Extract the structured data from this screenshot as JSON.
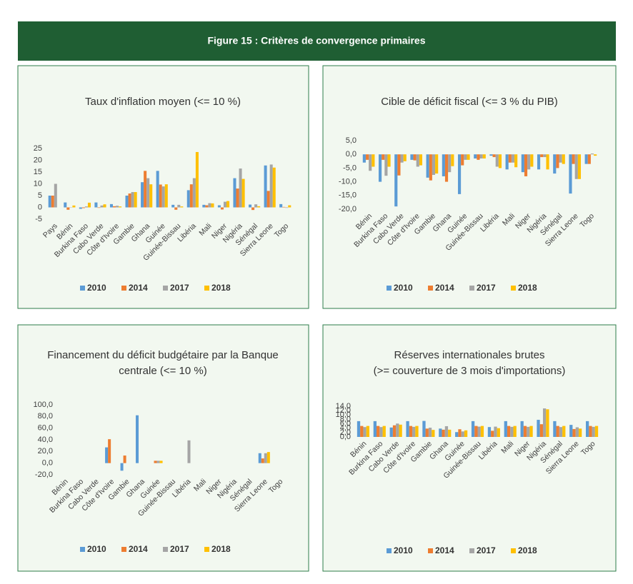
{
  "figure_title": "Figure 15 : Critères de convergence primaires",
  "chart_data": [
    {
      "type": "bar",
      "title": [
        "Taux d'inflation moyen (<= 10 %)"
      ],
      "categories": [
        "Pays",
        "Bénin",
        "Burkina Faso",
        "Cabo Verde",
        "Côte d'Ivoire",
        "Gambie",
        "Ghana",
        "Guinée",
        "Guinée-Bissau",
        "Libéria",
        "Mali",
        "Niger",
        "Nigéria",
        "Sénégal",
        "Sierra Leone",
        "Togo"
      ],
      "series": [
        {
          "name": "2010",
          "color": "#5b9bd5",
          "values": [
            5,
            2.1,
            -0.6,
            2.1,
            1.4,
            5,
            10.7,
            15.5,
            1.1,
            7.3,
            1.1,
            0.9,
            12.4,
            1.2,
            17.8,
            1.4
          ]
        },
        {
          "name": "2014",
          "color": "#ed7d31",
          "values": [
            5,
            -1,
            -0.3,
            -0.2,
            0.5,
            5.9,
            15.5,
            9.7,
            -1,
            9.8,
            0.9,
            -0.9,
            8,
            -1.1,
            7,
            0.2
          ]
        },
        {
          "name": "2017",
          "color": "#a5a5a5",
          "values": [
            10,
            0.1,
            0.4,
            0.8,
            0.7,
            6.5,
            12.4,
            8.9,
            1.1,
            12.4,
            1.8,
            2.4,
            16.5,
            1.3,
            18.2,
            -0.2
          ]
        },
        {
          "name": "2018",
          "color": "#ffc000",
          "values": [
            null,
            0.8,
            2,
            1.3,
            0.4,
            6.5,
            9.8,
            9.8,
            0.4,
            23.5,
            1.7,
            2.7,
            12.1,
            0.5,
            16.9,
            0.9
          ]
        }
      ],
      "ylim": [
        -5,
        25
      ],
      "yticks": [
        -5,
        0,
        5,
        10,
        15,
        20,
        25
      ]
    },
    {
      "type": "bar",
      "title": [
        "Cible de déficit fiscal (<= 3 % du PIB)"
      ],
      "categories": [
        "Bénin",
        "Burkina Faso",
        "Cabo Verde",
        "Côte d'Ivoire",
        "Gambie",
        "Ghana",
        "Guinée",
        "Guinée-Bissau",
        "Libéria",
        "Mali",
        "Niger",
        "Nigéria",
        "Sénégal",
        "Sierra Leone",
        "Togo"
      ],
      "series": [
        {
          "name": "2010",
          "color": "#5b9bd5",
          "values": [
            -3,
            -10,
            -19,
            -2,
            -8.5,
            -8,
            -14.5,
            -1.5,
            -0.5,
            -5.5,
            -6.5,
            -5.5,
            -7,
            -14.3,
            -3.5
          ]
        },
        {
          "name": "2014",
          "color": "#ed7d31",
          "values": [
            -2,
            -2,
            -7.7,
            -2.2,
            -9.5,
            -10,
            -4,
            -2,
            -1,
            -3,
            -8,
            -1,
            -5,
            -3.5,
            -3.5
          ]
        },
        {
          "name": "2017",
          "color": "#a5a5a5",
          "values": [
            -6,
            -7.8,
            -3,
            -4.5,
            -7.5,
            -6.5,
            -2,
            -1.5,
            -4.5,
            -3,
            -5.5,
            -1,
            -3,
            -9,
            0.3
          ]
        },
        {
          "name": "2018",
          "color": "#ffc000",
          "values": [
            -4.5,
            -4.5,
            -2.5,
            -4,
            -7,
            -4.3,
            -2,
            -1.5,
            -5,
            -4.7,
            -4.5,
            -5.5,
            -3.5,
            -9,
            -0.5
          ]
        }
      ],
      "ylim": [
        -20,
        5
      ],
      "yticks": [
        {
          "value": -20,
          "label": "-20,0"
        },
        {
          "value": -15,
          "label": "-15,0"
        },
        {
          "value": -10,
          "label": "-10,0"
        },
        {
          "value": -5,
          "label": "-5,0"
        },
        {
          "value": 0,
          "label": "0,0"
        },
        {
          "value": 5,
          "label": "5,0"
        }
      ]
    },
    {
      "type": "bar",
      "title": [
        "Financement du déficit budgétaire par la Banque",
        "centrale (<= 10 %)"
      ],
      "categories": [
        "Bénin",
        "Burkina Faso",
        "Cabo Verde",
        "Côte d'Ivoire",
        "Gambie",
        "Ghana",
        "Guinée",
        "Guinée-Bissau",
        "Libéria",
        "Mali",
        "Niger",
        "Nigéria",
        "Sénégal",
        "Sierra Leone",
        "Togo"
      ],
      "series": [
        {
          "name": "2010",
          "color": "#5b9bd5",
          "values": [
            0,
            0,
            0,
            27,
            -13,
            82,
            0,
            0,
            0,
            0,
            0,
            0,
            0,
            17,
            0
          ]
        },
        {
          "name": "2014",
          "color": "#ed7d31",
          "values": [
            0,
            0,
            0,
            41,
            13,
            0,
            4,
            0,
            0,
            0,
            0,
            0,
            0,
            8,
            0
          ]
        },
        {
          "name": "2017",
          "color": "#a5a5a5",
          "values": [
            0,
            0,
            0,
            0,
            0,
            0,
            4,
            0,
            39,
            0,
            0,
            0,
            0,
            17,
            0
          ]
        },
        {
          "name": "2018",
          "color": "#ffc000",
          "values": [
            0,
            0,
            0,
            0,
            0,
            0,
            4,
            0,
            0,
            0,
            0,
            0,
            0,
            19,
            0
          ]
        }
      ],
      "ylim": [
        -20,
        100
      ],
      "yticks": [
        {
          "value": -20,
          "label": "-20,0"
        },
        {
          "value": 0,
          "label": "0,0"
        },
        {
          "value": 20,
          "label": "20,0"
        },
        {
          "value": 40,
          "label": "40,0"
        },
        {
          "value": 60,
          "label": "60,0"
        },
        {
          "value": 80,
          "label": "80,0"
        },
        {
          "value": 100,
          "label": "100,0"
        }
      ]
    },
    {
      "type": "bar",
      "title": [
        "Réserves internationales brutes",
        "(>= couverture de 3 mois d'importations)"
      ],
      "categories": [
        "Bénin",
        "Burkina Faso",
        "Cabo Verde",
        "Côte d'Ivoire",
        "Gambie",
        "Ghana",
        "Guinée",
        "Guinée-Bissau",
        "Libéria",
        "Mali",
        "Niger",
        "Nigéria",
        "Sénégal",
        "Sierra Leone",
        "Togo"
      ],
      "series": [
        {
          "name": "2010",
          "color": "#5b9bd5",
          "values": [
            7.2,
            7.2,
            4.3,
            7.2,
            7.3,
            3.8,
            2.2,
            7.2,
            4.5,
            7.2,
            7.2,
            7.8,
            7.2,
            5.5,
            7.2
          ]
        },
        {
          "name": "2014",
          "color": "#ed7d31",
          "values": [
            5,
            5,
            5.3,
            5,
            3.8,
            3.3,
            3.5,
            5,
            2.8,
            5,
            5,
            5.8,
            5,
            3.6,
            5
          ]
        },
        {
          "name": "2017",
          "color": "#a5a5a5",
          "values": [
            4.5,
            4.5,
            6.1,
            4.6,
            4.2,
            4.9,
            2.5,
            4.7,
            4.7,
            4.6,
            4.6,
            13,
            4.5,
            4.4,
            4.6
          ]
        },
        {
          "name": "2018",
          "color": "#ffc000",
          "values": [
            5,
            5,
            5.6,
            5,
            3.2,
            3.3,
            3,
            5,
            4,
            5,
            5,
            12.6,
            5,
            3.8,
            5
          ]
        }
      ],
      "ylim": [
        0,
        14
      ],
      "yticks": [
        {
          "value": 0,
          "label": "0,0"
        },
        {
          "value": 2,
          "label": "2,0"
        },
        {
          "value": 4,
          "label": "4,0"
        },
        {
          "value": 6,
          "label": "6,0"
        },
        {
          "value": 8,
          "label": "8,0"
        },
        {
          "value": 10,
          "label": "10,0"
        },
        {
          "value": 12,
          "label": "12,0"
        },
        {
          "value": 14,
          "label": "14,0"
        }
      ]
    }
  ]
}
